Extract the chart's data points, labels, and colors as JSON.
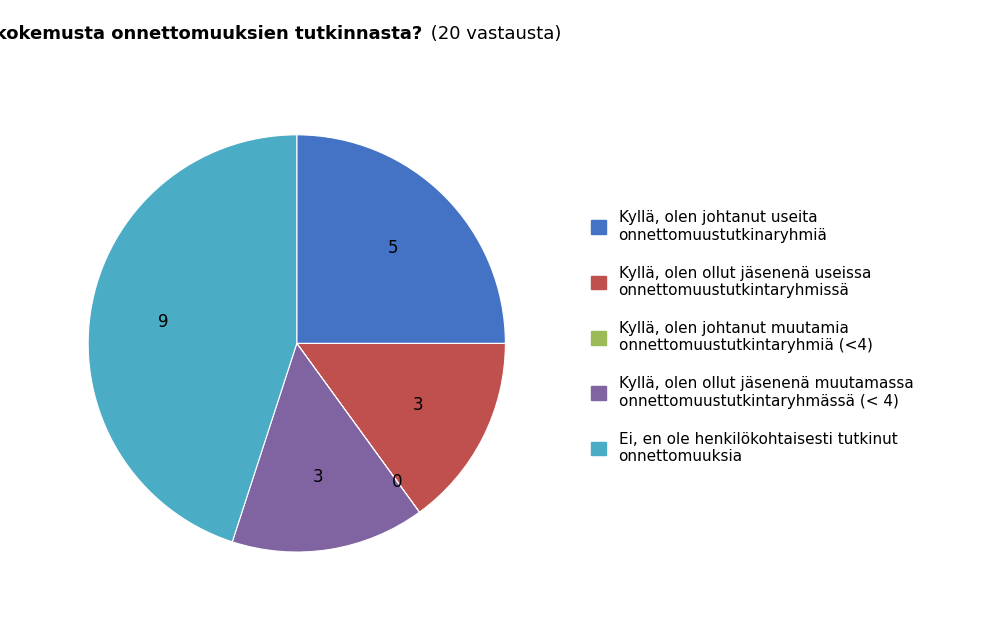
{
  "title_bold_part": "Onko sinulla kokemusta onnettomuuksien tutkinnasta?",
  "title_normal_part": " (20 vastausta)",
  "values": [
    5,
    3,
    0,
    3,
    9
  ],
  "colors": [
    "#4472C4",
    "#C0504D",
    "#9BBB59",
    "#8064A2",
    "#4BACC6"
  ],
  "legend_labels": [
    "Kyllä, olen johtanut useita\nonnettomuustutkinaryhmiä",
    "Kyllä, olen ollut jäsenenä useissa\nonnettomuustutkintaryhmissä",
    "Kyllä, olen johtanut muutamia\nonnettomuustutkintaryhmiä (<4)",
    "Kyllä, olen ollut jäsenenä muutamassa\nonnettomuustutkintaryhmässä (< 4)",
    "Ei, en ole henkilökohtaisesti tutkinut\nonnettomuuksia"
  ],
  "background_color": "#FFFFFF",
  "label_fontsize": 12,
  "title_fontsize": 13,
  "legend_fontsize": 11,
  "startangle": 90
}
